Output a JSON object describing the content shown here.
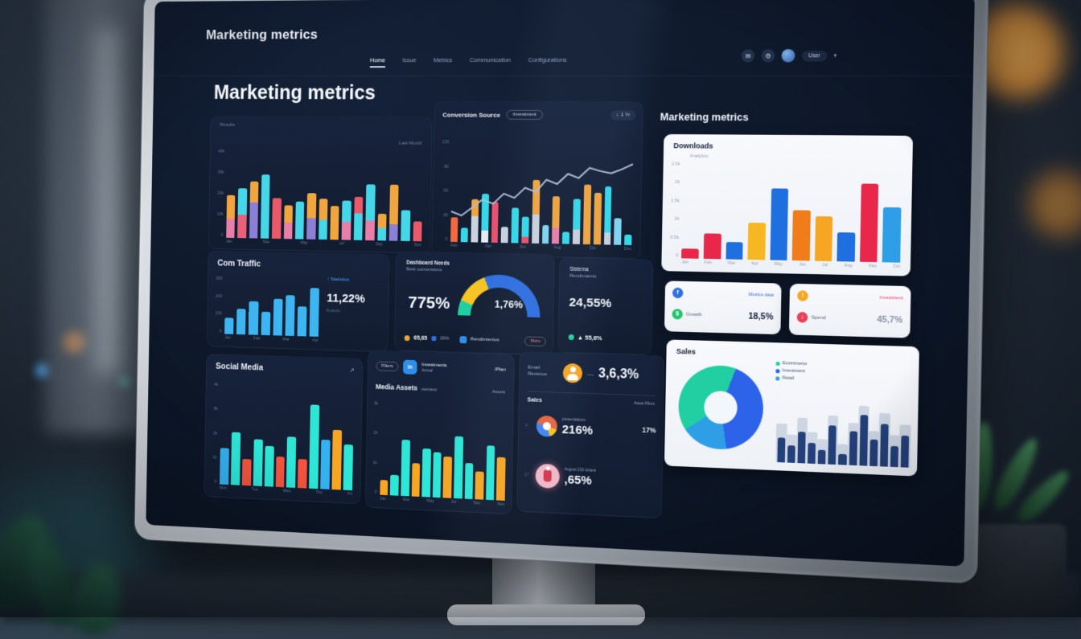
{
  "glyphs": {
    "caret": "▾",
    "up": "↑",
    "down": "↓",
    "expand": "↗",
    "mail": "✉",
    "gear": "⚙",
    "fb": "f",
    "dollar": "$",
    "alert": "!",
    "spend": "↓",
    "app": "in",
    "dash": "—"
  },
  "topbar": {
    "brand": "Marketing metrics",
    "nav": [
      {
        "label": "Home"
      },
      {
        "label": "Issue"
      },
      {
        "label": "Metrics"
      },
      {
        "label": "Communication"
      },
      {
        "label": "Configurations"
      }
    ],
    "user": "User"
  },
  "main": {
    "title": "Marketing metrics"
  },
  "right_column": {
    "title": "Marketing metrics"
  },
  "panels": {
    "overview": {
      "tag": "Results",
      "legend": "Last Month"
    },
    "conversion": {
      "title": "Conversion Source",
      "filter": "Investment",
      "range": "1 Yr"
    },
    "traffic": {
      "title": "Com Traffic",
      "link": "Statistics",
      "value": "11,22%",
      "note": "Bulletin"
    },
    "performance": {
      "title": "Dashboard Needs",
      "subtitle": "Best conversions",
      "value": "775%",
      "gauge_value": "1,76%",
      "legend_a": "65,65",
      "legend_a_color": "#f0a53f",
      "legend_b": "19%",
      "legend_b_color": "#2f6fe0",
      "metric": "Rendimientos",
      "metric_color": "#2f8fe8",
      "button": "More"
    },
    "system": {
      "title": "Sistema",
      "subtitle": "Rendimiento",
      "value": "24,55%",
      "delta": "▲ 55,6%",
      "delta_color": "#23d3a0"
    },
    "downloads": {
      "title": "Downloads",
      "legend": "Analytics"
    },
    "card_growth": {
      "link": "Metrics data",
      "link_color": "#2f6fe0",
      "icon1_color": "#2f6fe0",
      "icon2_color": "#23c46a",
      "label": "Growth",
      "value": "18,5%"
    },
    "card_spend": {
      "link": "Investment",
      "link_color": "#e8425a",
      "icon1_color": "#f6a623",
      "icon2_color": "#e8425a",
      "label": "Spend",
      "value": "45,7%"
    },
    "sales": {
      "title": "Sales",
      "legend": [
        "Ecommerce",
        "Investment",
        "Retail"
      ]
    },
    "social": {
      "title": "Social Media"
    },
    "media": {
      "pill": "Filters",
      "app_color": "#2f8fe8",
      "app_title": "Investments",
      "app_sub": "Annual",
      "plan": "/Plan",
      "title": "Media Assets",
      "subtitle": "overview",
      "link": "Assets"
    },
    "revenue": {
      "label": "Email Revenue",
      "icon_color": "#f6a623",
      "value": "3,6,3%",
      "section": "Sales",
      "section_link": "Asset Films",
      "figure_color": "#f2b9c6",
      "rows": [
        {
          "tick": "o",
          "label": "presentations",
          "value": "216%",
          "side": "17%"
        },
        {
          "tick": "17",
          "label": "August 210 tickets",
          "value": ",65%",
          "side": ""
        }
      ]
    }
  },
  "chart_data": [
    {
      "id": "overview",
      "type": "bar",
      "title": "Results",
      "stacked": true,
      "y_ticks": [
        "40k",
        "30k",
        "20k",
        "10k",
        "0"
      ],
      "x_labels": [
        "Jan",
        "Mar",
        "May",
        "Jul",
        "Sep",
        "Nov"
      ],
      "ylim": [
        0,
        100
      ],
      "bars": [
        {
          "segments": [
            {
              "color": "#f0a53f",
              "value": 26
            },
            {
              "color": "#e87fa8",
              "value": 22
            }
          ]
        },
        {
          "segments": [
            {
              "color": "#45d6e8",
              "value": 30
            },
            {
              "color": "#e8607a",
              "value": 26
            }
          ]
        },
        {
          "segments": [
            {
              "color": "#f0a53f",
              "value": 24
            },
            {
              "color": "#8b7fd6",
              "value": 40
            }
          ]
        },
        {
          "segments": [
            {
              "color": "#45d6e8",
              "value": 72
            }
          ]
        },
        {
          "segments": [
            {
              "color": "#e85a6a",
              "value": 46
            }
          ]
        },
        {
          "segments": [
            {
              "color": "#f0a53f",
              "value": 20
            },
            {
              "color": "#e87fa8",
              "value": 18
            }
          ]
        },
        {
          "segments": [
            {
              "color": "#45d6e8",
              "value": 42
            }
          ]
        },
        {
          "segments": [
            {
              "color": "#f0a53f",
              "value": 28
            },
            {
              "color": "#8b7fd6",
              "value": 24
            }
          ]
        },
        {
          "segments": [
            {
              "color": "#f0a53f",
              "value": 24
            },
            {
              "color": "#45d6e8",
              "value": 22
            }
          ]
        },
        {
          "segments": [
            {
              "color": "#f0a53f",
              "value": 38
            }
          ]
        },
        {
          "segments": [
            {
              "color": "#45d6e8",
              "value": 24
            },
            {
              "color": "#e87fa8",
              "value": 20
            }
          ]
        },
        {
          "segments": [
            {
              "color": "#e85a6a",
              "value": 18
            },
            {
              "color": "#45d6e8",
              "value": 30
            }
          ]
        },
        {
          "segments": [
            {
              "color": "#45d6e8",
              "value": 40
            },
            {
              "color": "#e87fa8",
              "value": 22
            }
          ]
        },
        {
          "segments": [
            {
              "color": "#f0a53f",
              "value": 16
            },
            {
              "color": "#45d6e8",
              "value": 14
            }
          ]
        },
        {
          "segments": [
            {
              "color": "#f0a53f",
              "value": 44
            },
            {
              "color": "#8b7fd6",
              "value": 18
            }
          ]
        },
        {
          "segments": [
            {
              "color": "#45d6e8",
              "value": 34
            }
          ]
        },
        {
          "segments": [
            {
              "color": "#e85a6a",
              "value": 22
            }
          ]
        }
      ]
    },
    {
      "id": "conversion",
      "type": "combo",
      "title": "Conversion Source",
      "y_ticks": [
        "120",
        "90",
        "60",
        "30",
        "0"
      ],
      "x_labels": [
        "Feb",
        "Apr",
        "Jun",
        "Aug",
        "Oct",
        "Dec"
      ],
      "ylim": [
        0,
        120
      ],
      "line": [
        30,
        26,
        34,
        42,
        38,
        48,
        44,
        54,
        50,
        62,
        58,
        68,
        64,
        74,
        71,
        69,
        73,
        78
      ],
      "line_color": "#aebdd4",
      "bars": [
        {
          "segments": [
            {
              "color": "#f2693f",
              "value": 24
            }
          ]
        },
        {
          "segments": [
            {
              "color": "#35d8e8",
              "value": 14
            }
          ]
        },
        {
          "segments": [
            {
              "color": "#f0a53f",
              "value": 16
            },
            {
              "color": "#c9d2de",
              "value": 26
            }
          ]
        },
        {
          "segments": [
            {
              "color": "#35d8e8",
              "value": 36
            },
            {
              "color": "#e6ecf2",
              "value": 12
            }
          ]
        },
        {
          "segments": [
            {
              "color": "#e8506e",
              "value": 40
            }
          ]
        },
        {
          "segments": [
            {
              "color": "#c9d2de",
              "value": 16
            }
          ]
        },
        {
          "segments": [
            {
              "color": "#35d8e8",
              "value": 34
            }
          ]
        },
        {
          "segments": [
            {
              "color": "#35d8e8",
              "value": 20
            },
            {
              "color": "#e8506e",
              "value": 6
            }
          ]
        },
        {
          "segments": [
            {
              "color": "#f0a53f",
              "value": 34
            },
            {
              "color": "#c9d2de",
              "value": 28
            }
          ]
        },
        {
          "segments": [
            {
              "color": "#7fd4f0",
              "value": 18
            }
          ]
        },
        {
          "segments": [
            {
              "color": "#f0a53f",
              "value": 30
            },
            {
              "color": "#e87fa8",
              "value": 16
            }
          ]
        },
        {
          "segments": [
            {
              "color": "#35d8e8",
              "value": 12
            }
          ]
        },
        {
          "segments": [
            {
              "color": "#35d8e8",
              "value": 30
            },
            {
              "color": "#c9d2de",
              "value": 14
            }
          ]
        },
        {
          "segments": [
            {
              "color": "#f0a53f",
              "value": 58
            }
          ]
        },
        {
          "segments": [
            {
              "color": "#f0a53f",
              "value": 50
            }
          ]
        },
        {
          "segments": [
            {
              "color": "#35d8e8",
              "value": 44
            },
            {
              "color": "#c9d2de",
              "value": 12
            }
          ]
        },
        {
          "segments": [
            {
              "color": "#7fd4f0",
              "value": 26
            }
          ]
        },
        {
          "segments": [
            {
              "color": "#35d8e8",
              "value": 10
            }
          ]
        }
      ]
    },
    {
      "id": "traffic",
      "type": "bar",
      "title": "Com Traffic",
      "color": "#3db5f0",
      "y_ticks": [
        "300",
        "200",
        "100",
        "0"
      ],
      "x_labels": [
        "Jan",
        "Feb",
        "Mar",
        "Apr"
      ],
      "ylim": [
        0,
        300
      ],
      "values": [
        28,
        45,
        58,
        40,
        64,
        70,
        52,
        84
      ]
    },
    {
      "id": "downloads",
      "type": "bar",
      "title": "Downloads",
      "y_ticks": [
        "2.5k",
        "2k",
        "1.5k",
        "1k",
        "0.5k",
        "0"
      ],
      "x_labels": [
        "Jan",
        "Feb",
        "Mar",
        "Apr",
        "May",
        "Jun",
        "Jul",
        "Aug",
        "Sep",
        "Oct"
      ],
      "ylim": [
        0,
        2500
      ],
      "bars": [
        {
          "color": "#e8274b",
          "value": 10
        },
        {
          "color": "#e8274b",
          "value": 26
        },
        {
          "color": "#1f6fe0",
          "value": 18
        },
        {
          "color": "#f6b723",
          "value": 38
        },
        {
          "color": "#1f6fe0",
          "value": 74
        },
        {
          "color": "#f07d1a",
          "value": 52
        },
        {
          "color": "#f6a623",
          "value": 46
        },
        {
          "color": "#1f6fe0",
          "value": 30
        },
        {
          "color": "#e8274b",
          "value": 80
        },
        {
          "color": "#2e9fe6",
          "value": 56
        }
      ]
    },
    {
      "id": "social",
      "type": "bar",
      "title": "Social Media",
      "y_ticks": [
        "4k",
        "3k",
        "2k",
        "1k",
        "0"
      ],
      "x_labels": [
        "Mon",
        "Tue",
        "Wed",
        "Thu",
        "Fri"
      ],
      "ylim": [
        0,
        4000
      ],
      "bars": [
        {
          "color": "#35b1f0",
          "value": 36
        },
        {
          "color": "#2ee6d6",
          "value": 52
        },
        {
          "color": "#f2543f",
          "value": 26
        },
        {
          "color": "#2ee6d6",
          "value": 46
        },
        {
          "color": "#2ee6d6",
          "value": 40
        },
        {
          "color": "#f2543f",
          "value": 30
        },
        {
          "color": "#2ee6d6",
          "value": 50
        },
        {
          "color": "#f2543f",
          "value": 28
        },
        {
          "color": "#2ee6d6",
          "value": 82
        },
        {
          "color": "#35b1f0",
          "value": 48
        },
        {
          "color": "#f6a623",
          "value": 58
        },
        {
          "color": "#2ee6d6",
          "value": 44
        }
      ]
    },
    {
      "id": "media",
      "type": "bar",
      "title": "Media Assets",
      "y_ticks": [
        "3k",
        "2k",
        "1k",
        "0"
      ],
      "x_labels": [
        "Jan",
        "Mar",
        "May",
        "Jul",
        "Sep",
        "Nov"
      ],
      "ylim": [
        0,
        3000
      ],
      "bars": [
        {
          "color": "#f6a623",
          "value": 16
        },
        {
          "color": "#2ee6d6",
          "value": 22
        },
        {
          "color": "#2ee6d6",
          "value": 60
        },
        {
          "color": "#f6a623",
          "value": 36
        },
        {
          "color": "#2ee6d6",
          "value": 52
        },
        {
          "color": "#2ee6d6",
          "value": 48
        },
        {
          "color": "#f6a623",
          "value": 44
        },
        {
          "color": "#2ee6d6",
          "value": 66
        },
        {
          "color": "#2ee6d6",
          "value": 38
        },
        {
          "color": "#f6a623",
          "value": 30
        },
        {
          "color": "#2ee6d6",
          "value": 58
        },
        {
          "color": "#f6a623",
          "value": 46
        }
      ]
    },
    {
      "id": "sales_bars",
      "type": "bar",
      "title": "Sales",
      "ghost_color": "#cdd6e2",
      "ylim": [
        0,
        100
      ],
      "bars": [
        {
          "color": "#24407a",
          "value": 35,
          "ghost": 55
        },
        {
          "color": "#24407a",
          "value": 25,
          "ghost": 40
        },
        {
          "color": "#24407a",
          "value": 45,
          "ghost": 65
        },
        {
          "color": "#24407a",
          "value": 30,
          "ghost": 45
        },
        {
          "color": "#24407a",
          "value": 20,
          "ghost": 35
        },
        {
          "color": "#24407a",
          "value": 55,
          "ghost": 70
        },
        {
          "color": "#24407a",
          "value": 15,
          "ghost": 30
        },
        {
          "color": "#24407a",
          "value": 48,
          "ghost": 60
        },
        {
          "color": "#24407a",
          "value": 72,
          "ghost": 85
        },
        {
          "color": "#24407a",
          "value": 38,
          "ghost": 50
        },
        {
          "color": "#24407a",
          "value": 60,
          "ghost": 75
        },
        {
          "color": "#24407a",
          "value": 30,
          "ghost": 45
        },
        {
          "color": "#24407a",
          "value": 45,
          "ghost": 60
        }
      ]
    },
    {
      "id": "sales_donut",
      "type": "pie",
      "title": "Sales",
      "from_deg": 20,
      "segments": [
        {
          "label": "Investment",
          "value": 42,
          "color": "#2d63e8"
        },
        {
          "label": "Retail",
          "value": 18,
          "color": "#2e9fe6"
        },
        {
          "label": "Ecommerce",
          "value": 40,
          "color": "#22cfa2"
        }
      ]
    },
    {
      "id": "perf_gauge",
      "type": "gauge",
      "title": "Dashboard Needs",
      "hole_color": "#141f33",
      "segments": [
        {
          "color": "#22cfa2",
          "pct": 6
        },
        {
          "color": "#f6c423",
          "pct": 13
        },
        {
          "color": "#2f6fe0",
          "pct": 31
        }
      ]
    }
  ]
}
